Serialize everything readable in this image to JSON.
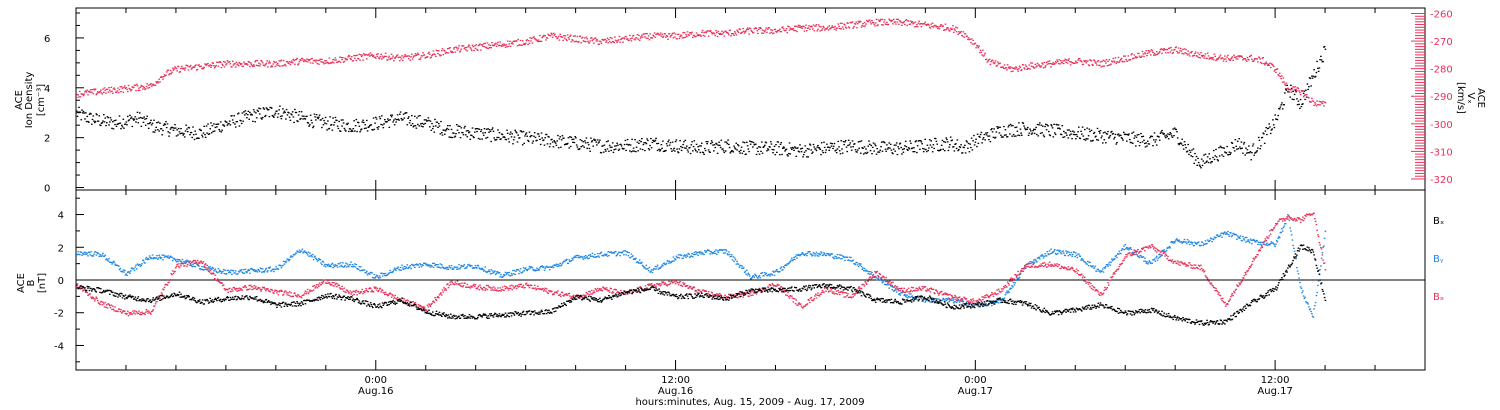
{
  "figure": {
    "xaxis_title": "hours:minutes, Aug. 15, 2009 - Aug. 17, 2009",
    "time_ticks": [
      {
        "hour": 24,
        "time": "0:00",
        "date": "Aug.16"
      },
      {
        "hour": 36,
        "time": "12:00",
        "date": "Aug.16"
      },
      {
        "hour": 48,
        "time": "0:00",
        "date": "Aug.17"
      },
      {
        "hour": 60,
        "time": "12:00",
        "date": "Aug.17"
      }
    ]
  },
  "colors": {
    "black": "#000000",
    "red": "#e8325a",
    "blue": "#1e88e5"
  },
  "chart_data": [
    {
      "type": "scatter",
      "title": "",
      "x_unit": "hours since 2009-08-15 00:00",
      "xlim": [
        12.0,
        66.0
      ],
      "ylabel_left": {
        "line1": "ACE",
        "line2": "Ion Density",
        "unit": "[cm⁻³]"
      },
      "ylabel_right": {
        "line1": "ACE",
        "line2": "Vₓ",
        "unit": "[km/s]"
      },
      "ylim_left": [
        -0.1,
        7.2
      ],
      "ylim_right": [
        -324,
        -258
      ],
      "yticks_left": [
        0,
        2,
        4,
        6
      ],
      "yticks_right": [
        -320,
        -310,
        -300,
        -290,
        -280,
        -270,
        -260
      ],
      "series": [
        {
          "name": "Ion Density",
          "axis": "left",
          "color": "black",
          "x": [
            12.0,
            12.5,
            13.0,
            13.5,
            14.0,
            14.5,
            15.0,
            16.0,
            17.0,
            18.0,
            19.0,
            20.0,
            21.0,
            22.0,
            23.0,
            24.0,
            25.0,
            26.0,
            27.0,
            28.0,
            29.0,
            30.0,
            31.0,
            32.0,
            33.0,
            34.0,
            35.0,
            36.0,
            37.0,
            38.0,
            39.0,
            40.0,
            41.0,
            42.0,
            43.0,
            44.0,
            45.0,
            46.0,
            47.0,
            47.5,
            48.0,
            49.0,
            50.0,
            51.0,
            52.0,
            53.0,
            54.0,
            55.0,
            56.0,
            56.5,
            57.0,
            57.5,
            58.0,
            58.5,
            59.0,
            59.5,
            60.0,
            60.5,
            61.0,
            61.5,
            62.0
          ],
          "y": [
            3.0,
            2.8,
            2.7,
            2.6,
            2.7,
            2.8,
            2.5,
            2.3,
            2.2,
            2.6,
            2.9,
            3.1,
            2.8,
            2.6,
            2.5,
            2.6,
            2.8,
            2.6,
            2.3,
            2.2,
            2.1,
            2.0,
            1.9,
            1.8,
            1.7,
            1.7,
            1.8,
            1.7,
            1.6,
            1.7,
            1.6,
            1.6,
            1.5,
            1.6,
            1.7,
            1.6,
            1.6,
            1.7,
            1.8,
            1.6,
            1.9,
            2.3,
            2.4,
            2.3,
            2.2,
            2.1,
            2.0,
            1.9,
            2.2,
            1.5,
            1.0,
            1.3,
            1.5,
            1.8,
            1.4,
            2.0,
            2.7,
            4.0,
            3.4,
            4.5,
            5.6
          ]
        },
        {
          "name": "Vx",
          "axis": "right",
          "color": "red",
          "x": [
            12.0,
            13.0,
            14.0,
            15.0,
            15.5,
            16.0,
            17.0,
            18.0,
            19.0,
            20.0,
            21.0,
            22.0,
            23.0,
            24.0,
            25.0,
            26.0,
            27.0,
            28.0,
            29.0,
            30.0,
            31.0,
            32.0,
            33.0,
            34.0,
            35.0,
            36.0,
            37.0,
            38.0,
            39.0,
            40.0,
            41.0,
            42.0,
            43.0,
            44.0,
            45.0,
            46.0,
            47.0,
            47.5,
            48.0,
            48.5,
            49.0,
            49.5,
            50.0,
            51.0,
            52.0,
            53.0,
            54.0,
            55.0,
            56.0,
            57.0,
            58.0,
            59.0,
            59.5,
            60.0,
            60.5,
            61.0,
            61.5,
            62.0
          ],
          "y": [
            -289,
            -288,
            -287,
            -286,
            -282,
            -280,
            -279,
            -278,
            -278,
            -278,
            -277,
            -277,
            -276,
            -275,
            -276,
            -275,
            -273,
            -272,
            -271,
            -270,
            -268,
            -269,
            -270,
            -269,
            -268,
            -268,
            -267,
            -267,
            -266,
            -266,
            -265,
            -265,
            -264,
            -263,
            -263,
            -264,
            -265,
            -267,
            -271,
            -277,
            -279,
            -280,
            -279,
            -278,
            -277,
            -278,
            -276,
            -274,
            -273,
            -275,
            -276,
            -276,
            -277,
            -280,
            -287,
            -288,
            -292,
            -293
          ]
        }
      ]
    },
    {
      "type": "scatter",
      "title": "",
      "x_unit": "hours since 2009-08-15 00:00",
      "xlim": [
        12.0,
        66.0
      ],
      "ylabel_left": {
        "line1": "ACE",
        "line2": "B",
        "unit": "[nT]"
      },
      "ylim_left": [
        -5.5,
        5.5
      ],
      "yticks_left": [
        -4,
        -2,
        0,
        2,
        4
      ],
      "zero_line": true,
      "legend": [
        "Bₓ",
        "Bᵧ",
        "Bₔ"
      ],
      "series": [
        {
          "name": "Bx",
          "color": "black",
          "x": [
            12.0,
            13.0,
            14.0,
            15.0,
            16.0,
            17.0,
            18.0,
            19.0,
            20.0,
            21.0,
            22.0,
            23.0,
            24.0,
            25.0,
            26.0,
            27.0,
            28.0,
            29.0,
            30.0,
            31.0,
            32.0,
            33.0,
            34.0,
            35.0,
            36.0,
            37.0,
            38.0,
            39.0,
            40.0,
            41.0,
            42.0,
            43.0,
            44.0,
            45.0,
            46.0,
            47.0,
            48.0,
            49.0,
            50.0,
            51.0,
            52.0,
            53.0,
            54.0,
            55.0,
            56.0,
            57.0,
            58.0,
            59.0,
            60.0,
            60.5,
            61.0,
            61.5,
            62.0
          ],
          "y": [
            -0.4,
            -0.6,
            -1.0,
            -1.2,
            -0.8,
            -1.3,
            -1.1,
            -1.0,
            -1.5,
            -1.4,
            -0.9,
            -1.1,
            -1.6,
            -1.2,
            -1.9,
            -2.2,
            -2.2,
            -2.1,
            -2.0,
            -1.9,
            -1.0,
            -1.2,
            -0.7,
            -0.5,
            -1.0,
            -0.9,
            -1.1,
            -0.6,
            -0.6,
            -0.5,
            -0.3,
            -0.5,
            -1.2,
            -1.3,
            -1.0,
            -1.6,
            -1.5,
            -1.2,
            -1.4,
            -2.0,
            -1.8,
            -1.5,
            -2.0,
            -1.8,
            -2.3,
            -2.6,
            -2.5,
            -1.4,
            -0.5,
            0.8,
            2.1,
            1.8,
            -1.3
          ]
        },
        {
          "name": "By",
          "color": "blue",
          "x": [
            12.0,
            13.0,
            14.0,
            15.0,
            16.0,
            17.0,
            18.0,
            19.0,
            20.0,
            21.0,
            22.0,
            23.0,
            24.0,
            25.0,
            26.0,
            27.0,
            28.0,
            29.0,
            30.0,
            31.0,
            32.0,
            33.0,
            34.0,
            35.0,
            36.0,
            37.0,
            38.0,
            39.0,
            40.0,
            41.0,
            42.0,
            43.0,
            44.0,
            45.0,
            46.0,
            47.0,
            48.0,
            49.0,
            50.0,
            51.0,
            52.0,
            53.0,
            54.0,
            55.0,
            56.0,
            57.0,
            58.0,
            59.0,
            60.0,
            60.5,
            61.0,
            61.5,
            62.0
          ],
          "y": [
            1.7,
            1.6,
            0.4,
            1.5,
            1.3,
            0.8,
            0.5,
            0.6,
            0.7,
            1.9,
            0.9,
            1.0,
            0.2,
            0.8,
            1.0,
            0.8,
            0.9,
            0.3,
            0.7,
            0.8,
            1.4,
            1.6,
            1.7,
            0.6,
            1.4,
            1.7,
            1.8,
            0.2,
            0.5,
            1.7,
            1.6,
            1.3,
            0.2,
            -0.8,
            -1.2,
            -1.2,
            -1.5,
            -1.3,
            0.9,
            1.8,
            1.6,
            0.5,
            2.1,
            1.0,
            2.5,
            2.2,
            2.9,
            2.4,
            2.2,
            4.0,
            -0.5,
            -2.2,
            3.1
          ]
        },
        {
          "name": "Bz",
          "color": "red",
          "x": [
            12.0,
            13.0,
            14.0,
            15.0,
            16.0,
            17.0,
            18.0,
            19.0,
            20.0,
            21.0,
            22.0,
            23.0,
            24.0,
            25.0,
            26.0,
            27.0,
            28.0,
            29.0,
            30.0,
            31.0,
            32.0,
            33.0,
            34.0,
            35.0,
            36.0,
            37.0,
            38.0,
            39.0,
            40.0,
            41.0,
            42.0,
            43.0,
            44.0,
            45.0,
            46.0,
            47.0,
            48.0,
            49.0,
            50.0,
            51.0,
            52.0,
            53.0,
            54.0,
            55.0,
            56.0,
            57.0,
            58.0,
            59.0,
            60.0,
            60.5,
            61.0,
            61.5,
            62.0
          ],
          "y": [
            -0.3,
            -1.4,
            -2.0,
            -1.9,
            0.9,
            1.2,
            -0.6,
            -0.4,
            -0.7,
            -0.9,
            0.0,
            -0.8,
            -0.5,
            -1.2,
            -1.7,
            -0.1,
            -0.4,
            -0.5,
            -0.3,
            -0.7,
            -1.0,
            -0.5,
            -0.8,
            -0.3,
            -0.1,
            -0.7,
            -1.0,
            -0.8,
            -0.2,
            -1.6,
            -0.5,
            -1.0,
            0.5,
            -0.6,
            -0.5,
            -1.0,
            -1.3,
            -0.6,
            0.9,
            1.0,
            0.6,
            -0.9,
            1.5,
            2.1,
            1.1,
            0.8,
            -1.5,
            1.0,
            3.5,
            3.9,
            3.7,
            4.2,
            0.6
          ]
        }
      ]
    }
  ]
}
